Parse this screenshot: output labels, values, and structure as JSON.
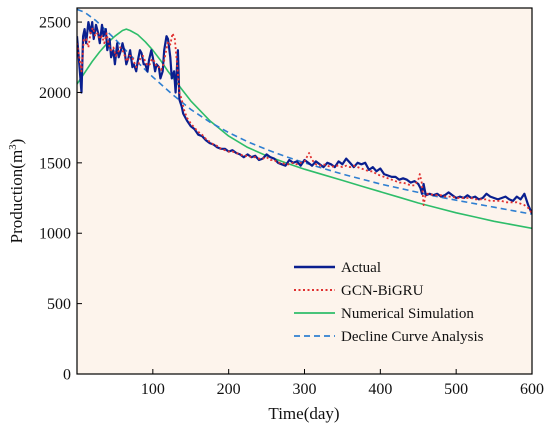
{
  "chart_data": {
    "type": "line",
    "title": "",
    "xlabel": "Time(day)",
    "ylabel_base": "Production(m",
    "ylabel_sup": "3",
    "ylabel_close": ")",
    "xlim": [
      0,
      600
    ],
    "ylim": [
      0,
      2600
    ],
    "x_ticks": [
      100,
      200,
      300,
      400,
      500,
      600
    ],
    "y_ticks": [
      0,
      500,
      1000,
      1500,
      2000,
      2500
    ],
    "grid": false,
    "legend_position": "bottom-right",
    "plot_background": "#fdf4ec",
    "series": [
      {
        "name": "Actual",
        "style": "solid",
        "color": "#0a1f8f",
        "x": [
          0,
          3,
          6,
          8,
          10,
          12,
          15,
          18,
          20,
          22,
          25,
          28,
          30,
          33,
          35,
          38,
          40,
          43,
          45,
          48,
          50,
          53,
          55,
          58,
          60,
          63,
          65,
          68,
          70,
          73,
          75,
          78,
          80,
          83,
          85,
          88,
          90,
          93,
          95,
          98,
          100,
          103,
          105,
          108,
          110,
          113,
          115,
          118,
          120,
          123,
          125,
          128,
          130,
          133,
          135,
          138,
          140,
          145,
          150,
          155,
          160,
          165,
          170,
          175,
          180,
          185,
          190,
          195,
          200,
          205,
          210,
          215,
          220,
          225,
          230,
          235,
          240,
          245,
          250,
          255,
          260,
          265,
          270,
          275,
          280,
          285,
          290,
          295,
          300,
          305,
          310,
          315,
          320,
          325,
          330,
          335,
          340,
          345,
          350,
          355,
          360,
          365,
          370,
          375,
          380,
          385,
          390,
          395,
          400,
          405,
          410,
          415,
          420,
          425,
          430,
          435,
          440,
          445,
          450,
          453,
          455,
          457,
          460,
          465,
          470,
          475,
          480,
          485,
          490,
          495,
          500,
          505,
          510,
          515,
          520,
          525,
          530,
          535,
          540,
          545,
          550,
          555,
          560,
          565,
          570,
          575,
          580,
          585,
          590,
          595,
          600
        ],
        "values": [
          2400,
          2200,
          2000,
          2400,
          2450,
          2350,
          2500,
          2420,
          2500,
          2380,
          2480,
          2420,
          2350,
          2480,
          2400,
          2450,
          2300,
          2380,
          2250,
          2300,
          2200,
          2350,
          2250,
          2300,
          2350,
          2280,
          2200,
          2250,
          2300,
          2180,
          2200,
          2150,
          2220,
          2300,
          2280,
          2200,
          2200,
          2150,
          2230,
          2300,
          2250,
          2150,
          2200,
          2180,
          2100,
          2150,
          2300,
          2400,
          2380,
          2250,
          2100,
          2150,
          2000,
          2300,
          1950,
          1900,
          1850,
          1800,
          1760,
          1740,
          1700,
          1690,
          1660,
          1640,
          1630,
          1610,
          1600,
          1600,
          1580,
          1590,
          1570,
          1560,
          1540,
          1560,
          1540,
          1550,
          1520,
          1530,
          1560,
          1540,
          1530,
          1500,
          1490,
          1480,
          1520,
          1500,
          1510,
          1480,
          1520,
          1500,
          1480,
          1510,
          1490,
          1470,
          1500,
          1490,
          1470,
          1510,
          1490,
          1530,
          1500,
          1470,
          1500,
          1490,
          1500,
          1450,
          1470,
          1440,
          1460,
          1420,
          1410,
          1400,
          1400,
          1380,
          1390,
          1380,
          1360,
          1370,
          1350,
          1320,
          1280,
          1350,
          1270,
          1280,
          1270,
          1280,
          1260,
          1270,
          1290,
          1270,
          1250,
          1260,
          1250,
          1270,
          1250,
          1260,
          1240,
          1250,
          1280,
          1260,
          1250,
          1240,
          1250,
          1260,
          1240,
          1230,
          1260,
          1240,
          1280,
          1200,
          1140
        ]
      },
      {
        "name": "GCN-BiGRU",
        "style": "dotted",
        "color": "#e03030",
        "x": [
          0,
          3,
          6,
          9,
          12,
          15,
          18,
          21,
          24,
          27,
          30,
          33,
          36,
          39,
          42,
          45,
          48,
          51,
          54,
          57,
          60,
          63,
          66,
          69,
          72,
          75,
          78,
          81,
          84,
          87,
          90,
          93,
          96,
          99,
          102,
          105,
          108,
          111,
          114,
          117,
          120,
          123,
          126,
          129,
          132,
          135,
          138,
          141,
          145,
          150,
          155,
          160,
          165,
          170,
          175,
          180,
          185,
          190,
          195,
          200,
          205,
          210,
          215,
          220,
          225,
          230,
          235,
          240,
          245,
          250,
          255,
          260,
          265,
          270,
          275,
          280,
          285,
          290,
          295,
          300,
          303,
          306,
          310,
          315,
          320,
          325,
          330,
          335,
          340,
          345,
          350,
          355,
          360,
          365,
          370,
          375,
          380,
          385,
          390,
          395,
          400,
          405,
          410,
          415,
          420,
          425,
          430,
          435,
          440,
          445,
          450,
          452,
          455,
          457,
          460,
          465,
          470,
          475,
          480,
          485,
          490,
          495,
          500,
          505,
          510,
          515,
          520,
          525,
          530,
          535,
          540,
          545,
          550,
          555,
          560,
          565,
          570,
          575,
          580,
          585,
          590,
          595,
          600
        ],
        "values": [
          2350,
          2250,
          2150,
          2380,
          2380,
          2320,
          2430,
          2460,
          2400,
          2420,
          2380,
          2400,
          2350,
          2420,
          2340,
          2300,
          2320,
          2260,
          2280,
          2320,
          2300,
          2260,
          2220,
          2260,
          2260,
          2220,
          2180,
          2200,
          2250,
          2260,
          2220,
          2190,
          2200,
          2240,
          2220,
          2180,
          2180,
          2160,
          2200,
          2280,
          2360,
          2340,
          2420,
          2380,
          2200,
          2000,
          1950,
          1880,
          1820,
          1780,
          1750,
          1720,
          1700,
          1670,
          1650,
          1630,
          1620,
          1600,
          1590,
          1580,
          1580,
          1570,
          1560,
          1550,
          1550,
          1540,
          1540,
          1530,
          1530,
          1540,
          1520,
          1520,
          1500,
          1500,
          1490,
          1490,
          1500,
          1490,
          1500,
          1510,
          1540,
          1570,
          1520,
          1490,
          1480,
          1490,
          1480,
          1470,
          1480,
          1480,
          1470,
          1480,
          1470,
          1480,
          1470,
          1460,
          1450,
          1440,
          1440,
          1420,
          1410,
          1400,
          1390,
          1380,
          1370,
          1360,
          1360,
          1350,
          1340,
          1340,
          1380,
          1420,
          1350,
          1200,
          1280,
          1280,
          1270,
          1270,
          1270,
          1260,
          1260,
          1260,
          1250,
          1250,
          1250,
          1250,
          1250,
          1240,
          1240,
          1240,
          1240,
          1230,
          1230,
          1230,
          1230,
          1220,
          1220,
          1220,
          1220,
          1210,
          1200,
          1180,
          1140
        ]
      },
      {
        "name": "Numerical Simulation",
        "style": "solid",
        "color": "#2ebd6a",
        "x": [
          0,
          10,
          20,
          30,
          40,
          50,
          60,
          65,
          70,
          80,
          90,
          100,
          110,
          120,
          130,
          140,
          150,
          175,
          200,
          225,
          250,
          275,
          300,
          325,
          350,
          375,
          400,
          425,
          450,
          475,
          500,
          525,
          550,
          575,
          600
        ],
        "values": [
          2060,
          2140,
          2220,
          2290,
          2350,
          2400,
          2440,
          2450,
          2440,
          2410,
          2360,
          2300,
          2230,
          2150,
          2080,
          2010,
          1940,
          1800,
          1690,
          1610,
          1550,
          1500,
          1455,
          1415,
          1375,
          1335,
          1295,
          1255,
          1215,
          1180,
          1145,
          1115,
          1085,
          1060,
          1035
        ]
      },
      {
        "name": "Decline Curve Analysis",
        "style": "dashed",
        "color": "#2f7fd1",
        "x": [
          0,
          10,
          25,
          50,
          75,
          100,
          125,
          150,
          175,
          200,
          225,
          250,
          275,
          300,
          325,
          350,
          375,
          400,
          425,
          450,
          475,
          500,
          525,
          550,
          575,
          600
        ],
        "values": [
          2590,
          2570,
          2510,
          2380,
          2240,
          2110,
          1990,
          1880,
          1790,
          1715,
          1650,
          1595,
          1545,
          1500,
          1460,
          1420,
          1385,
          1350,
          1320,
          1290,
          1260,
          1235,
          1210,
          1185,
          1160,
          1135
        ]
      }
    ]
  }
}
